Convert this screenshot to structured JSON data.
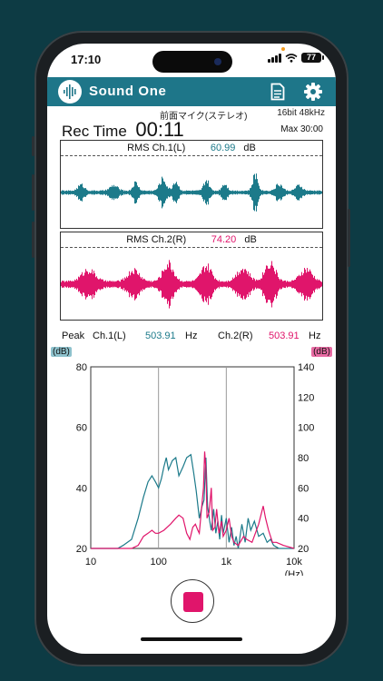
{
  "status": {
    "time": "17:10",
    "battery": "77"
  },
  "app": {
    "title": "Sound One"
  },
  "icons": {
    "logo": "waveform-logo-icon",
    "document": "document-icon",
    "settings": "gear-icon"
  },
  "info": {
    "mic": "前面マイク(ステレオ)",
    "format": "16bit 48kHz",
    "rec_label": "Rec Time",
    "rec_time": "00:11",
    "max": "Max 30:00"
  },
  "rms": {
    "ch1": {
      "label": "RMS Ch.1(L)",
      "value": "60.99",
      "unit": "dB"
    },
    "ch2": {
      "label": "RMS Ch.2(R)",
      "value": "74.20",
      "unit": "dB"
    }
  },
  "peak": {
    "label": "Peak",
    "ch1_label": "Ch.1(L)",
    "ch1_value": "503.91",
    "ch1_unit": "Hz",
    "ch2_label": "Ch.2(R)",
    "ch2_value": "503.91",
    "ch2_unit": "Hz"
  },
  "colors": {
    "ch1": "#1c7a8a",
    "ch2": "#e0156b",
    "appbar": "#1e7689"
  },
  "chart_data": {
    "type": "line",
    "x_scale": "log",
    "xlim": [
      10,
      10000
    ],
    "x_ticks": [
      "10",
      "100",
      "1k",
      "10k"
    ],
    "x_unit": "(Hz)",
    "y_left": {
      "label": "(dB)",
      "lim": [
        20,
        80
      ],
      "ticks": [
        "80",
        "60",
        "40",
        "20"
      ]
    },
    "y_right": {
      "label": "(dB)",
      "lim": [
        20,
        140
      ],
      "ticks": [
        "140",
        "120",
        "100",
        "80",
        "60",
        "40",
        "20"
      ]
    },
    "grid_x": [
      100,
      1000
    ],
    "series": [
      {
        "color": "#1c7a8a",
        "axis": "left",
        "points": [
          [
            10,
            20
          ],
          [
            25,
            20
          ],
          [
            30,
            21
          ],
          [
            40,
            23
          ],
          [
            50,
            30
          ],
          [
            60,
            37
          ],
          [
            70,
            42
          ],
          [
            80,
            44
          ],
          [
            90,
            42
          ],
          [
            100,
            40
          ],
          [
            110,
            43
          ],
          [
            120,
            47
          ],
          [
            130,
            50
          ],
          [
            140,
            46
          ],
          [
            160,
            49
          ],
          [
            180,
            50
          ],
          [
            200,
            44
          ],
          [
            230,
            47
          ],
          [
            260,
            50
          ],
          [
            300,
            51
          ],
          [
            330,
            45
          ],
          [
            360,
            39
          ],
          [
            400,
            30
          ],
          [
            440,
            34
          ],
          [
            470,
            36
          ],
          [
            500,
            50
          ],
          [
            530,
            34
          ],
          [
            570,
            29
          ],
          [
            600,
            26
          ],
          [
            650,
            33
          ],
          [
            700,
            25
          ],
          [
            750,
            29
          ],
          [
            800,
            23
          ],
          [
            850,
            31
          ],
          [
            900,
            25
          ],
          [
            1000,
            30
          ],
          [
            1100,
            22
          ],
          [
            1200,
            27
          ],
          [
            1300,
            21
          ],
          [
            1400,
            24
          ],
          [
            1500,
            20
          ],
          [
            1700,
            28
          ],
          [
            1900,
            22
          ],
          [
            2100,
            30
          ],
          [
            2300,
            26
          ],
          [
            2600,
            29
          ],
          [
            3000,
            24
          ],
          [
            3500,
            25
          ],
          [
            4000,
            22
          ],
          [
            4500,
            23
          ],
          [
            5000,
            21
          ],
          [
            6000,
            20
          ],
          [
            10000,
            20
          ]
        ]
      },
      {
        "color": "#e0156b",
        "axis": "left",
        "points": [
          [
            10,
            20
          ],
          [
            25,
            20
          ],
          [
            40,
            20
          ],
          [
            50,
            21
          ],
          [
            60,
            24
          ],
          [
            70,
            25
          ],
          [
            80,
            26
          ],
          [
            90,
            25
          ],
          [
            100,
            25
          ],
          [
            120,
            26
          ],
          [
            150,
            28
          ],
          [
            180,
            30
          ],
          [
            200,
            31
          ],
          [
            230,
            30
          ],
          [
            260,
            25
          ],
          [
            290,
            23
          ],
          [
            320,
            27
          ],
          [
            350,
            28
          ],
          [
            380,
            26
          ],
          [
            400,
            25
          ],
          [
            430,
            33
          ],
          [
            460,
            40
          ],
          [
            480,
            52
          ],
          [
            500,
            46
          ],
          [
            520,
            30
          ],
          [
            560,
            32
          ],
          [
            600,
            40
          ],
          [
            630,
            26
          ],
          [
            680,
            27
          ],
          [
            720,
            33
          ],
          [
            780,
            25
          ],
          [
            850,
            29
          ],
          [
            900,
            24
          ],
          [
            1000,
            26
          ],
          [
            1100,
            30
          ],
          [
            1200,
            24
          ],
          [
            1300,
            22
          ],
          [
            1500,
            21
          ],
          [
            1800,
            24
          ],
          [
            2000,
            23
          ],
          [
            2400,
            22
          ],
          [
            3000,
            28
          ],
          [
            3500,
            34
          ],
          [
            3800,
            30
          ],
          [
            4200,
            26
          ],
          [
            4800,
            22
          ],
          [
            5500,
            22
          ],
          [
            7000,
            21
          ],
          [
            10000,
            20
          ]
        ]
      }
    ]
  }
}
